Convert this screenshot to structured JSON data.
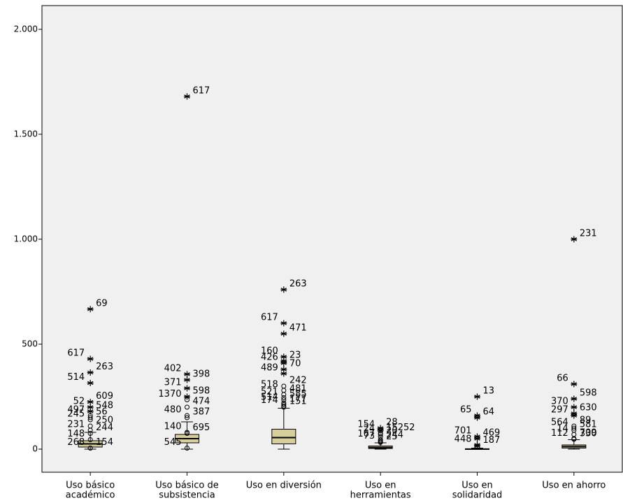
{
  "chart_data": {
    "type": "box",
    "categories": [
      [
        "Uso básico",
        "académico"
      ],
      [
        "Uso básico de",
        "subsistencia"
      ],
      [
        "Uso en diversión"
      ],
      [
        "Uso en",
        "herramientas"
      ],
      [
        "Uso en",
        "solidaridad"
      ],
      [
        "Uso en ahorro"
      ]
    ],
    "ylim": [
      -110,
      2113
    ],
    "yticks": [
      0,
      500,
      {
        "value": 1000,
        "label": "1.000"
      },
      {
        "value": 1500,
        "label": "1.500"
      },
      {
        "value": 2000,
        "label": "2.000"
      }
    ],
    "box_color": "#d6cf9c",
    "series": [
      {
        "name": "Uso básico académico",
        "min": 0,
        "q1": 10,
        "median": 25,
        "q3": 40,
        "max": 80,
        "outliers": [
          {
            "value": 667,
            "label": "69",
            "marker": "star"
          },
          {
            "value": 430,
            "label": "617",
            "marker": "star"
          },
          {
            "value": 365,
            "label": "263",
            "marker": "star"
          },
          {
            "value": 315,
            "label": "514",
            "marker": "star"
          },
          {
            "value": 225,
            "label": "609",
            "marker": "star"
          },
          {
            "value": 200,
            "label": "52",
            "marker": "star"
          },
          {
            "value": 180,
            "label": "548",
            "marker": "star"
          },
          {
            "value": 160,
            "label": "497",
            "marker": "circle"
          },
          {
            "value": 150,
            "label": "56",
            "marker": "circle"
          },
          {
            "value": 140,
            "label": "245",
            "marker": "circle"
          },
          {
            "value": 110,
            "label": "250",
            "marker": "circle"
          },
          {
            "value": 90,
            "label": "231",
            "marker": "circle"
          },
          {
            "value": 75,
            "label": "244",
            "marker": "circle"
          },
          {
            "value": 45,
            "label": "148",
            "marker": "circle"
          },
          {
            "value": 5,
            "label": "154",
            "marker": "circle"
          },
          {
            "value": 5,
            "label": "268",
            "marker": "circle"
          }
        ]
      },
      {
        "name": "Uso básico de subsistencia",
        "min": 0,
        "q1": 30,
        "median": 50,
        "q3": 70,
        "max": 130,
        "outliers": [
          {
            "value": 1680,
            "label": "617",
            "marker": "star"
          },
          {
            "value": 357,
            "label": "402",
            "marker": "star"
          },
          {
            "value": 330,
            "label": "398",
            "marker": "star"
          },
          {
            "value": 290,
            "label": "371",
            "marker": "star"
          },
          {
            "value": 250,
            "label": "598",
            "marker": "star"
          },
          {
            "value": 235,
            "label": "1370",
            "marker": "circle"
          },
          {
            "value": 200,
            "label": "474",
            "marker": "circle"
          },
          {
            "value": 160,
            "label": "480",
            "marker": "circle"
          },
          {
            "value": 150,
            "label": "387",
            "marker": "circle"
          },
          {
            "value": 80,
            "label": "140",
            "marker": "circle"
          },
          {
            "value": 75,
            "label": "695",
            "marker": "circle"
          },
          {
            "value": 5,
            "label": "545",
            "marker": "circle"
          }
        ]
      },
      {
        "name": "Uso en diversión",
        "min": 0,
        "q1": 25,
        "median": 55,
        "q3": 95,
        "max": 195,
        "outliers": [
          {
            "value": 760,
            "label": "263",
            "marker": "star"
          },
          {
            "value": 600,
            "label": "617",
            "marker": "star"
          },
          {
            "value": 550,
            "label": "471",
            "marker": "star"
          },
          {
            "value": 440,
            "label": "160",
            "marker": "star"
          },
          {
            "value": 420,
            "label": "23",
            "marker": "star"
          },
          {
            "value": 410,
            "label": "426",
            "marker": "star"
          },
          {
            "value": 380,
            "label": "70",
            "marker": "star"
          },
          {
            "value": 360,
            "label": "489",
            "marker": "star"
          },
          {
            "value": 300,
            "label": "242",
            "marker": "circle"
          },
          {
            "value": 280,
            "label": "518",
            "marker": "circle"
          },
          {
            "value": 260,
            "label": "481",
            "marker": "circle"
          },
          {
            "value": 245,
            "label": "521",
            "marker": "circle"
          },
          {
            "value": 235,
            "label": "585",
            "marker": "circle"
          },
          {
            "value": 220,
            "label": "514",
            "marker": "circle"
          },
          {
            "value": 212,
            "label": "177",
            "marker": "circle"
          },
          {
            "value": 205,
            "label": "174",
            "marker": "circle"
          },
          {
            "value": 200,
            "label": "151",
            "marker": "circle"
          }
        ]
      },
      {
        "name": "Uso en herramientas",
        "min": 0,
        "q1": 3,
        "median": 8,
        "q3": 15,
        "max": 30,
        "outliers": [
          {
            "value": 100,
            "label": "28",
            "marker": "star"
          },
          {
            "value": 90,
            "label": "154",
            "marker": "star"
          },
          {
            "value": 75,
            "label": "15252",
            "marker": "circle"
          },
          {
            "value": 70,
            "label": "24",
            "marker": "circle"
          },
          {
            "value": 60,
            "label": "20",
            "marker": "circle"
          },
          {
            "value": 45,
            "label": "167",
            "marker": "circle"
          },
          {
            "value": 40,
            "label": "244",
            "marker": "circle"
          },
          {
            "value": 35,
            "label": "73",
            "marker": "circle"
          },
          {
            "value": 32,
            "label": "25",
            "marker": "circle"
          }
        ]
      },
      {
        "name": "Uso en solidaridad",
        "min": 0,
        "q1": 0,
        "median": 0,
        "q3": 2,
        "max": 5,
        "outliers": [
          {
            "value": 250,
            "label": "13",
            "marker": "star"
          },
          {
            "value": 160,
            "label": "65",
            "marker": "star"
          },
          {
            "value": 150,
            "label": "64",
            "marker": "star"
          },
          {
            "value": 60,
            "label": "701",
            "marker": "star"
          },
          {
            "value": 50,
            "label": "469",
            "marker": "star"
          },
          {
            "value": 20,
            "label": "448",
            "marker": "star"
          },
          {
            "value": 15,
            "label": "187",
            "marker": "star"
          }
        ]
      },
      {
        "name": "Uso en ahorro",
        "min": 0,
        "q1": 5,
        "median": 12,
        "q3": 20,
        "max": 45,
        "outliers": [
          {
            "value": 1000,
            "label": "231",
            "marker": "star"
          },
          {
            "value": 310,
            "label": "66",
            "marker": "star"
          },
          {
            "value": 240,
            "label": "598",
            "marker": "star"
          },
          {
            "value": 200,
            "label": "370",
            "marker": "star"
          },
          {
            "value": 170,
            "label": "630",
            "marker": "star"
          },
          {
            "value": 160,
            "label": "297",
            "marker": "star"
          },
          {
            "value": 110,
            "label": "89",
            "marker": "circle"
          },
          {
            "value": 100,
            "label": "564",
            "marker": "circle"
          },
          {
            "value": 90,
            "label": "581",
            "marker": "circle"
          },
          {
            "value": 70,
            "label": "14",
            "marker": "circle"
          },
          {
            "value": 50,
            "label": "709",
            "marker": "circle"
          },
          {
            "value": 48,
            "label": "112",
            "marker": "circle"
          },
          {
            "value": 47,
            "label": "330",
            "marker": "circle"
          }
        ]
      }
    ]
  }
}
